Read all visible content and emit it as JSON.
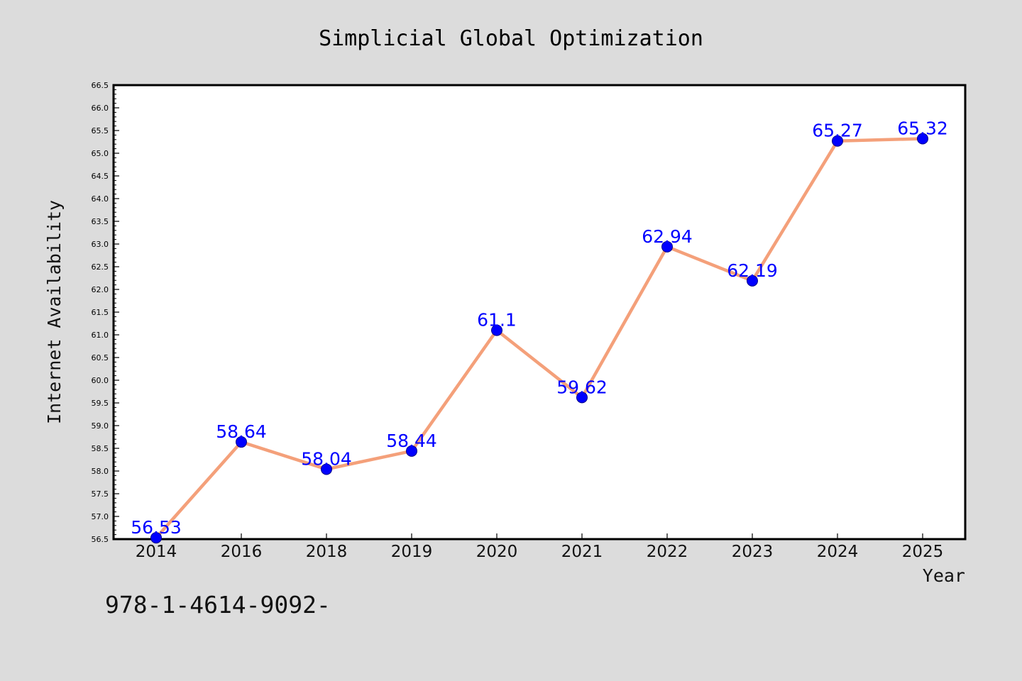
{
  "chart_data": {
    "type": "line",
    "title": "Simplicial Global Optimization",
    "xlabel": "Year",
    "ylabel": "Internet Availability",
    "footer_text": "978-1-4614-9092-",
    "categories": [
      "2014",
      "2016",
      "2018",
      "2019",
      "2020",
      "2021",
      "2022",
      "2023",
      "2024",
      "2025"
    ],
    "series": [
      {
        "values": [
          56.53,
          58.64,
          58.04,
          58.44,
          61.1,
          59.62,
          62.94,
          62.19,
          65.27,
          65.32
        ],
        "labels": [
          "56.53",
          "58.64",
          "58.04",
          "58.44",
          "61.1",
          "59.62",
          "62.94",
          "62.19",
          "65.27",
          "65.32"
        ]
      }
    ],
    "ylim": [
      56.5,
      66.5
    ],
    "y_ticks": [
      "56.5",
      "57.0",
      "57.5",
      "58.0",
      "58.5",
      "59.0",
      "59.5",
      "60.0",
      "60.5",
      "61.0",
      "61.5",
      "62.0",
      "62.5",
      "63.0",
      "63.5",
      "64.0",
      "64.5",
      "65.0",
      "65.5",
      "66.0",
      "66.5"
    ],
    "grid": false,
    "colors": {
      "background": "#dcdcdc",
      "plot_background": "#ffffff",
      "line": "#f4a07a",
      "marker": "#0000ff",
      "data_label": "#0000ff"
    }
  }
}
